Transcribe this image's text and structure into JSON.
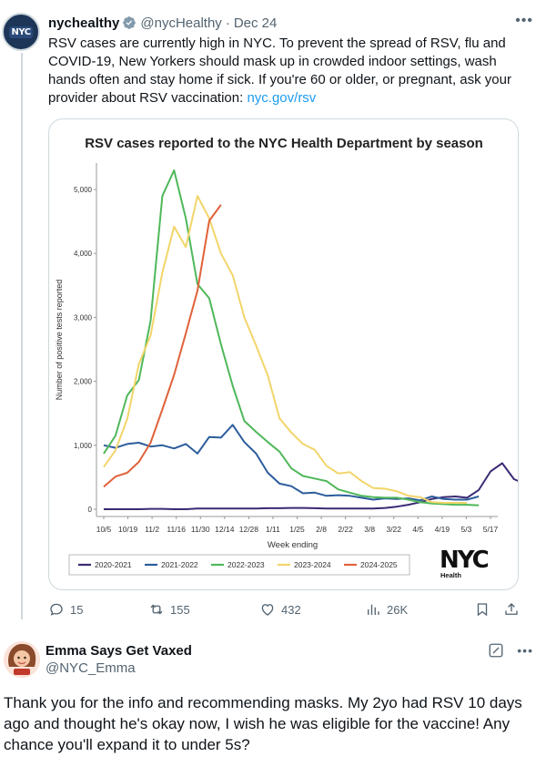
{
  "post": {
    "avatar_text": "NYC",
    "name": "nychealthy",
    "handle": "@nycHealthy",
    "separator": "·",
    "date": "Dec 24",
    "text_main": "RSV cases are currently high in NYC. To prevent the spread of RSV, flu and COVID-19, New Yorkers should mask up in crowded indoor settings, wash hands often and stay home if sick. If you're 60 or older, or pregnant, ask your provider about RSV vaccination: ",
    "link": "nyc.gov/rsv",
    "stats": {
      "replies": "15",
      "reposts": "155",
      "likes": "432",
      "views": "26K"
    }
  },
  "chart_data": {
    "type": "line",
    "title": "RSV cases reported to the NYC Health Department by season",
    "xlabel": "Week ending",
    "ylabel": "Number of positive tests reported",
    "ylim": [
      0,
      5300
    ],
    "yticks": [
      0,
      1000,
      2000,
      3000,
      4000,
      5000
    ],
    "ytick_labels": [
      "0",
      "1,000",
      "2,000",
      "3,000",
      "4,000",
      "5,000"
    ],
    "x_tick_labels": [
      "10/5",
      "10/19",
      "11/2",
      "11/16",
      "11/30",
      "12/14",
      "12/28",
      "1/11",
      "1/25",
      "2/8",
      "2/22",
      "3/8",
      "3/22",
      "4/5",
      "4/19",
      "5/3",
      "5/17"
    ],
    "logo_text": "NYC",
    "logo_sub": "Health",
    "series": [
      {
        "name": "2020-2021",
        "color": "#3b2a73",
        "values": [
          0,
          0,
          0,
          0,
          5,
          5,
          0,
          0,
          10,
          10,
          10,
          10,
          10,
          10,
          15,
          15,
          20,
          20,
          15,
          10,
          10,
          10,
          10,
          10,
          20,
          40,
          70,
          110,
          160,
          190,
          200,
          180,
          300,
          590,
          720,
          470,
          390,
          330
        ]
      },
      {
        "name": "2021-2022",
        "color": "#2c5d9c",
        "values": [
          1000,
          960,
          1020,
          1040,
          980,
          1000,
          950,
          1020,
          870,
          1130,
          1120,
          1320,
          1050,
          870,
          570,
          400,
          360,
          250,
          260,
          210,
          220,
          210,
          180,
          150,
          170,
          160,
          170,
          140,
          200,
          160,
          150,
          150,
          200
        ]
      },
      {
        "name": "2022-2023",
        "color": "#4fb85a",
        "values": [
          870,
          1150,
          1780,
          2020,
          2950,
          4900,
          5300,
          4550,
          3520,
          3300,
          2580,
          1930,
          1380,
          1210,
          1050,
          900,
          640,
          520,
          480,
          440,
          310,
          260,
          210,
          190,
          180,
          180,
          150,
          110,
          90,
          80,
          70,
          70,
          60
        ]
      },
      {
        "name": "2023-2024",
        "color": "#f2d56a",
        "values": [
          660,
          920,
          1410,
          2270,
          2720,
          3700,
          4420,
          4100,
          4900,
          4550,
          4000,
          3660,
          3000,
          2560,
          2090,
          1420,
          1200,
          1020,
          930,
          680,
          560,
          580,
          440,
          330,
          320,
          280,
          210,
          190,
          110,
          100,
          100,
          100
        ]
      },
      {
        "name": "2024-2025",
        "color": "#e0613a",
        "values": [
          350,
          510,
          570,
          740,
          1040,
          1560,
          2100,
          2750,
          3420,
          4510,
          4760
        ]
      }
    ]
  },
  "reply": {
    "name": "Emma Says Get Vaxed",
    "handle": "@NYC_Emma",
    "text": "Thank you for the info and recommending masks. My 2yo had RSV 10 days ago and thought he's okay now, I wish he was eligible for the vaccine! Any chance you'll expand it to under 5s?"
  }
}
